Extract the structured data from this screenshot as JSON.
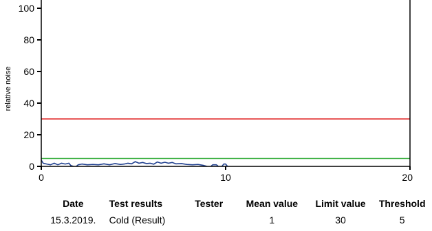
{
  "chart_data": {
    "type": "line",
    "ylabel": "relative noise",
    "xlabel": "",
    "title": "",
    "xlim": [
      0,
      20
    ],
    "ylim": [
      0,
      100
    ],
    "x_ticks": [
      0,
      10,
      20
    ],
    "y_ticks": [
      0,
      20,
      40,
      60,
      80,
      100
    ],
    "x_tick_labels": [
      "0",
      "10",
      "20"
    ],
    "y_tick_labels": [
      "0",
      "20",
      "40",
      "60",
      "80",
      "100"
    ],
    "grid": false,
    "reference_lines": [
      {
        "y": 30,
        "color": "#e02020"
      },
      {
        "y": 5,
        "color": "#3cb043"
      }
    ],
    "series": [
      {
        "color": "#1f3f8f",
        "segments": [
          [
            [
              0,
              4
            ],
            [
              0.1,
              2
            ],
            [
              0.3,
              1.5
            ],
            [
              0.5,
              1
            ],
            [
              0.7,
              2
            ],
            [
              0.9,
              1
            ],
            [
              1.1,
              2
            ],
            [
              1.3,
              1.5
            ],
            [
              1.5,
              2
            ],
            [
              1.6,
              0.5
            ],
            [
              1.75,
              0
            ]
          ],
          [
            [
              1.9,
              0
            ],
            [
              2.0,
              1
            ],
            [
              2.2,
              1.5
            ],
            [
              2.5,
              1
            ],
            [
              2.8,
              1.2
            ],
            [
              3.1,
              1
            ],
            [
              3.4,
              1.6
            ],
            [
              3.7,
              1
            ],
            [
              4.0,
              1.8
            ],
            [
              4.3,
              1.2
            ],
            [
              4.5,
              1.5
            ],
            [
              4.7,
              2
            ],
            [
              4.9,
              1.6
            ],
            [
              5.1,
              3
            ],
            [
              5.3,
              2
            ],
            [
              5.5,
              2.5
            ],
            [
              5.7,
              1.8
            ],
            [
              5.9,
              2
            ],
            [
              6.1,
              1.4
            ],
            [
              6.3,
              2.8
            ],
            [
              6.5,
              2
            ],
            [
              6.7,
              2.6
            ],
            [
              6.9,
              2
            ],
            [
              7.1,
              2.5
            ],
            [
              7.3,
              1.6
            ],
            [
              7.6,
              1.8
            ],
            [
              7.9,
              1.2
            ],
            [
              8.2,
              1
            ],
            [
              8.5,
              1.2
            ],
            [
              8.8,
              0.6
            ],
            [
              9.0,
              0
            ]
          ],
          [
            [
              9.2,
              0
            ],
            [
              9.3,
              1
            ],
            [
              9.5,
              1
            ],
            [
              9.6,
              0
            ]
          ],
          [
            [
              9.8,
              0
            ],
            [
              9.9,
              1.5
            ],
            [
              10.0,
              1.5
            ],
            [
              10.1,
              0
            ]
          ]
        ]
      }
    ]
  },
  "table": {
    "headers": {
      "date": "Date",
      "test_results": "Test results",
      "tester": "Tester",
      "mean_value": "Mean value",
      "limit_value": "Limit value",
      "threshold": "Threshold"
    },
    "rows": [
      {
        "date": "15.3.2019.",
        "test_results": "Cold (Result)",
        "tester": "",
        "mean_value": "1",
        "limit_value": "30",
        "threshold": "5"
      }
    ]
  }
}
